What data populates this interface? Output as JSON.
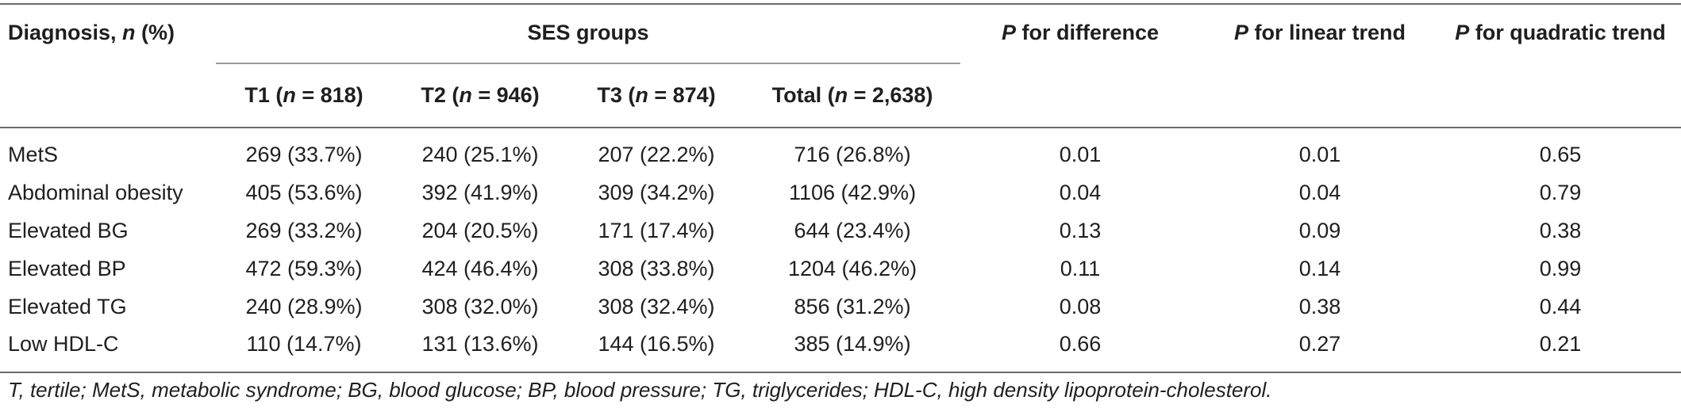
{
  "header": {
    "diagnosis": {
      "label": "Diagnosis, ",
      "italic": "n",
      "suffix": " (%)"
    },
    "ses_groups": "SES groups",
    "p_difference": {
      "italic": "P",
      "suffix": " for difference"
    },
    "p_linear": {
      "italic": "P",
      "suffix": " for linear trend"
    },
    "p_quadratic": {
      "italic": "P",
      "suffix": " for quadratic trend"
    },
    "groups": [
      {
        "prefix": "T1 (",
        "italic": "n",
        "suffix": " = 818)"
      },
      {
        "prefix": "T2 (",
        "italic": "n",
        "suffix": " = 946)"
      },
      {
        "prefix": "T3 (",
        "italic": "n",
        "suffix": " = 874)"
      },
      {
        "prefix": "Total (",
        "italic": "n",
        "suffix": " = 2,638)"
      }
    ]
  },
  "rows": [
    {
      "diagnosis": "MetS",
      "t1": "269 (33.7%)",
      "t2": "240 (25.1%)",
      "t3": "207 (22.2%)",
      "total": "716 (26.8%)",
      "p_diff": "0.01",
      "p_lin": "0.01",
      "p_quad": "0.65"
    },
    {
      "diagnosis": "Abdominal obesity",
      "t1": "405 (53.6%)",
      "t2": "392 (41.9%)",
      "t3": "309 (34.2%)",
      "total": "1106 (42.9%)",
      "p_diff": "0.04",
      "p_lin": "0.04",
      "p_quad": "0.79"
    },
    {
      "diagnosis": "Elevated BG",
      "t1": "269 (33.2%)",
      "t2": "204 (20.5%)",
      "t3": "171 (17.4%)",
      "total": "644 (23.4%)",
      "p_diff": "0.13",
      "p_lin": "0.09",
      "p_quad": "0.38"
    },
    {
      "diagnosis": "Elevated BP",
      "t1": "472 (59.3%)",
      "t2": "424 (46.4%)",
      "t3": "308 (33.8%)",
      "total": "1204 (46.2%)",
      "p_diff": "0.11",
      "p_lin": "0.14",
      "p_quad": "0.99"
    },
    {
      "diagnosis": "Elevated TG",
      "t1": "240 (28.9%)",
      "t2": "308 (32.0%)",
      "t3": "308 (32.4%)",
      "total": "856 (31.2%)",
      "p_diff": "0.08",
      "p_lin": "0.38",
      "p_quad": "0.44"
    },
    {
      "diagnosis": "Low HDL-C",
      "t1": "110 (14.7%)",
      "t2": "131 (13.6%)",
      "t3": "144 (16.5%)",
      "total": "385 (14.9%)",
      "p_diff": "0.66",
      "p_lin": "0.27",
      "p_quad": "0.21"
    }
  ],
  "footnote": "T, tertile; MetS, metabolic syndrome; BG, blood glucose; BP, blood pressure; TG, triglycerides; HDL-C, high density lipoprotein-cholesterol."
}
